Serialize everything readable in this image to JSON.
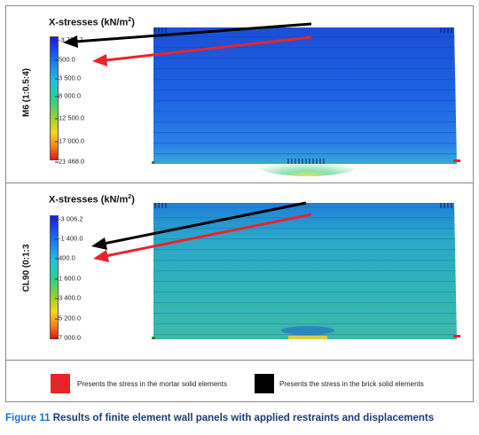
{
  "panels": [
    {
      "model_label": "M6 (1:0.5:4)",
      "title_prefix": "X-stresses (kN/m",
      "title_exp": "2",
      "title_suffix": ")",
      "ticks": [
        "-3 775.7",
        "500.0",
        "3 500.0",
        "8 000.0",
        "12 500.0",
        "17 000.0",
        "21 468.0"
      ]
    },
    {
      "model_label": "CL90 (0:1:3",
      "title_prefix": "X-stresses (kN/m",
      "title_exp": "2",
      "title_suffix": ")",
      "ticks": [
        "-3 006.2",
        "-1 400.0",
        "400.0",
        "1 600.0",
        "3 400.0",
        "5 200.0",
        "7 000.0"
      ]
    }
  ],
  "legend": {
    "mortar": {
      "color": "#e8242a",
      "label": "Presents the stress in the mortar solid elements"
    },
    "brick": {
      "color": "#000000",
      "label": "Presents the stress in the brick solid elements"
    }
  },
  "caption": {
    "figure": "Figure 11",
    "text": " Results of finite element wall panels with applied restraints and displacements"
  }
}
